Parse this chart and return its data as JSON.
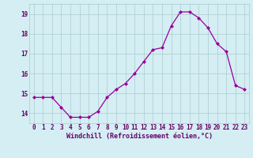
{
  "x": [
    0,
    1,
    2,
    3,
    4,
    5,
    6,
    7,
    8,
    9,
    10,
    11,
    12,
    13,
    14,
    15,
    16,
    17,
    18,
    19,
    20,
    21,
    22,
    23
  ],
  "y": [
    14.8,
    14.8,
    14.8,
    14.3,
    13.8,
    13.8,
    13.8,
    14.1,
    14.8,
    15.2,
    15.5,
    16.0,
    16.6,
    17.2,
    17.3,
    18.4,
    19.1,
    19.1,
    18.8,
    18.3,
    17.5,
    17.1,
    15.4,
    15.2
  ],
  "line_color": "#990099",
  "marker_color": "#990099",
  "bg_color": "#d4eef4",
  "grid_color": "#aacccc",
  "tick_color": "#660066",
  "xlabel": "Windchill (Refroidissement éolien,°C)",
  "ylabel": "",
  "ylim": [
    13.5,
    19.5
  ],
  "xlim": [
    -0.5,
    23.5
  ],
  "yticks": [
    14,
    15,
    16,
    17,
    18,
    19
  ],
  "xticks": [
    0,
    1,
    2,
    3,
    4,
    5,
    6,
    7,
    8,
    9,
    10,
    11,
    12,
    13,
    14,
    15,
    16,
    17,
    18,
    19,
    20,
    21,
    22,
    23
  ],
  "title": "",
  "font_family": "monospace",
  "tick_fontsize": 5.5,
  "xlabel_fontsize": 6.0
}
